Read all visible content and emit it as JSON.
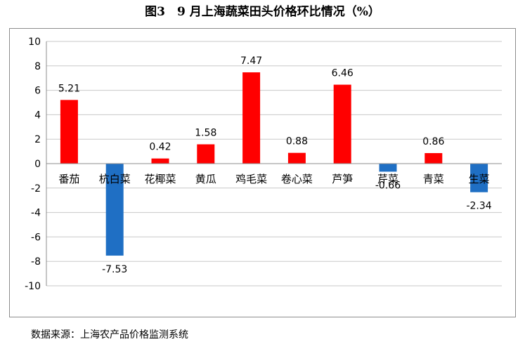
{
  "title": "图3　9 月上海蔬菜田头价格环比情况（%）",
  "source": "数据来源：上海农产品价格监测系统",
  "colors": {
    "positive": "#ff0000",
    "negative": "#1f6fc4",
    "grid": "#c8c8c8",
    "axis": "#8c8c8c"
  },
  "chart_data": {
    "type": "bar",
    "title": "9 月上海蔬菜田头价格环比情况（%）",
    "xlabel": "",
    "ylabel": "",
    "ylim": [
      -10,
      10
    ],
    "yticks": [
      10,
      8,
      6,
      4,
      2,
      0,
      -2,
      -4,
      -6,
      -8,
      -10
    ],
    "grid": true,
    "legend": "none",
    "categories": [
      "番茄",
      "杭白菜",
      "花椰菜",
      "黄瓜",
      "鸡毛菜",
      "卷心菜",
      "芦笋",
      "芹菜",
      "青菜",
      "生菜"
    ],
    "values": [
      5.21,
      -7.53,
      0.42,
      1.58,
      7.47,
      0.88,
      6.46,
      -0.66,
      0.86,
      -2.34
    ],
    "data_labels": [
      "5.21",
      "-7.53",
      "0.42",
      "1.58",
      "7.47",
      "0.88",
      "6.46",
      "-0.66",
      "0.86",
      "-2.34"
    ]
  }
}
